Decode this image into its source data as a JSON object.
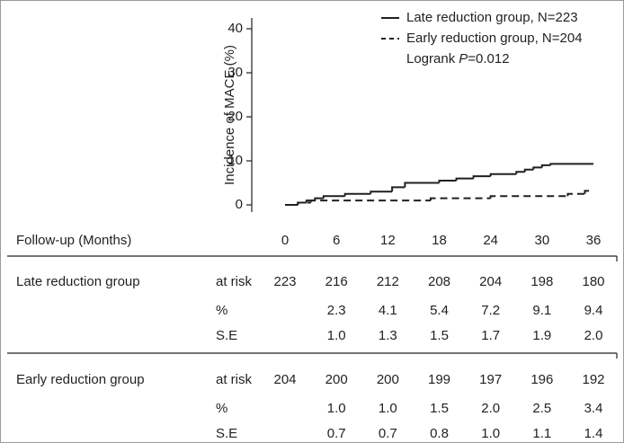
{
  "chart_data": {
    "type": "step",
    "ylabel": "Incidence of MACE (%)",
    "xlabel": "Follow-up (Months)",
    "xlim": [
      0,
      36
    ],
    "xticks": [
      0,
      6,
      12,
      18,
      24,
      30,
      36
    ],
    "ylim": [
      -1.5,
      41
    ],
    "yticks": [
      0,
      10,
      20,
      30,
      40
    ],
    "legend_position": "upper right",
    "annotation": [
      "Logrank",
      "P",
      "=0.012"
    ],
    "series": [
      {
        "name": "Late reduction group, N=223",
        "color": "#231f20",
        "dash": "solid",
        "x": [
          0,
          1.5,
          2.5,
          3.5,
          4.5,
          7,
          10,
          12.5,
          14,
          18,
          20,
          22,
          24,
          27,
          28,
          29,
          30,
          31,
          36
        ],
        "values": [
          0,
          0.5,
          1,
          1.5,
          2,
          2.5,
          3,
          4,
          5,
          5.5,
          6,
          6.5,
          7,
          7.5,
          8,
          8.5,
          9,
          9.3,
          9.3
        ]
      },
      {
        "name": "Early reduction group, N=204",
        "color": "#231f20",
        "dash": "dashed",
        "x": [
          0,
          1.5,
          3,
          17,
          24,
          33,
          35,
          36
        ],
        "values": [
          0,
          0.5,
          1,
          1.5,
          2,
          2.5,
          3.2,
          3.2
        ]
      }
    ],
    "risk_table": [
      {
        "name": "Late reduction group",
        "rows": [
          {
            "label": "at risk",
            "values": [
              223,
              216,
              212,
              208,
              204,
              198,
              180
            ]
          },
          {
            "label": "%",
            "values": [
              null,
              "2.3",
              "4.1",
              "5.4",
              "7.2",
              "9.1",
              "9.4"
            ]
          },
          {
            "label": "S.E",
            "values": [
              null,
              "1.0",
              "1.3",
              "1.5",
              "1.7",
              "1.9",
              "2.0"
            ]
          }
        ]
      },
      {
        "name": "Early reduction group",
        "rows": [
          {
            "label": "at risk",
            "values": [
              204,
              200,
              200,
              199,
              197,
              196,
              192
            ]
          },
          {
            "label": "%",
            "values": [
              null,
              "1.0",
              "1.0",
              "1.5",
              "2.0",
              "2.5",
              "3.4"
            ]
          },
          {
            "label": "S.E",
            "values": [
              null,
              "0.7",
              "0.7",
              "0.8",
              "1.0",
              "1.1",
              "1.4"
            ]
          }
        ]
      }
    ]
  }
}
